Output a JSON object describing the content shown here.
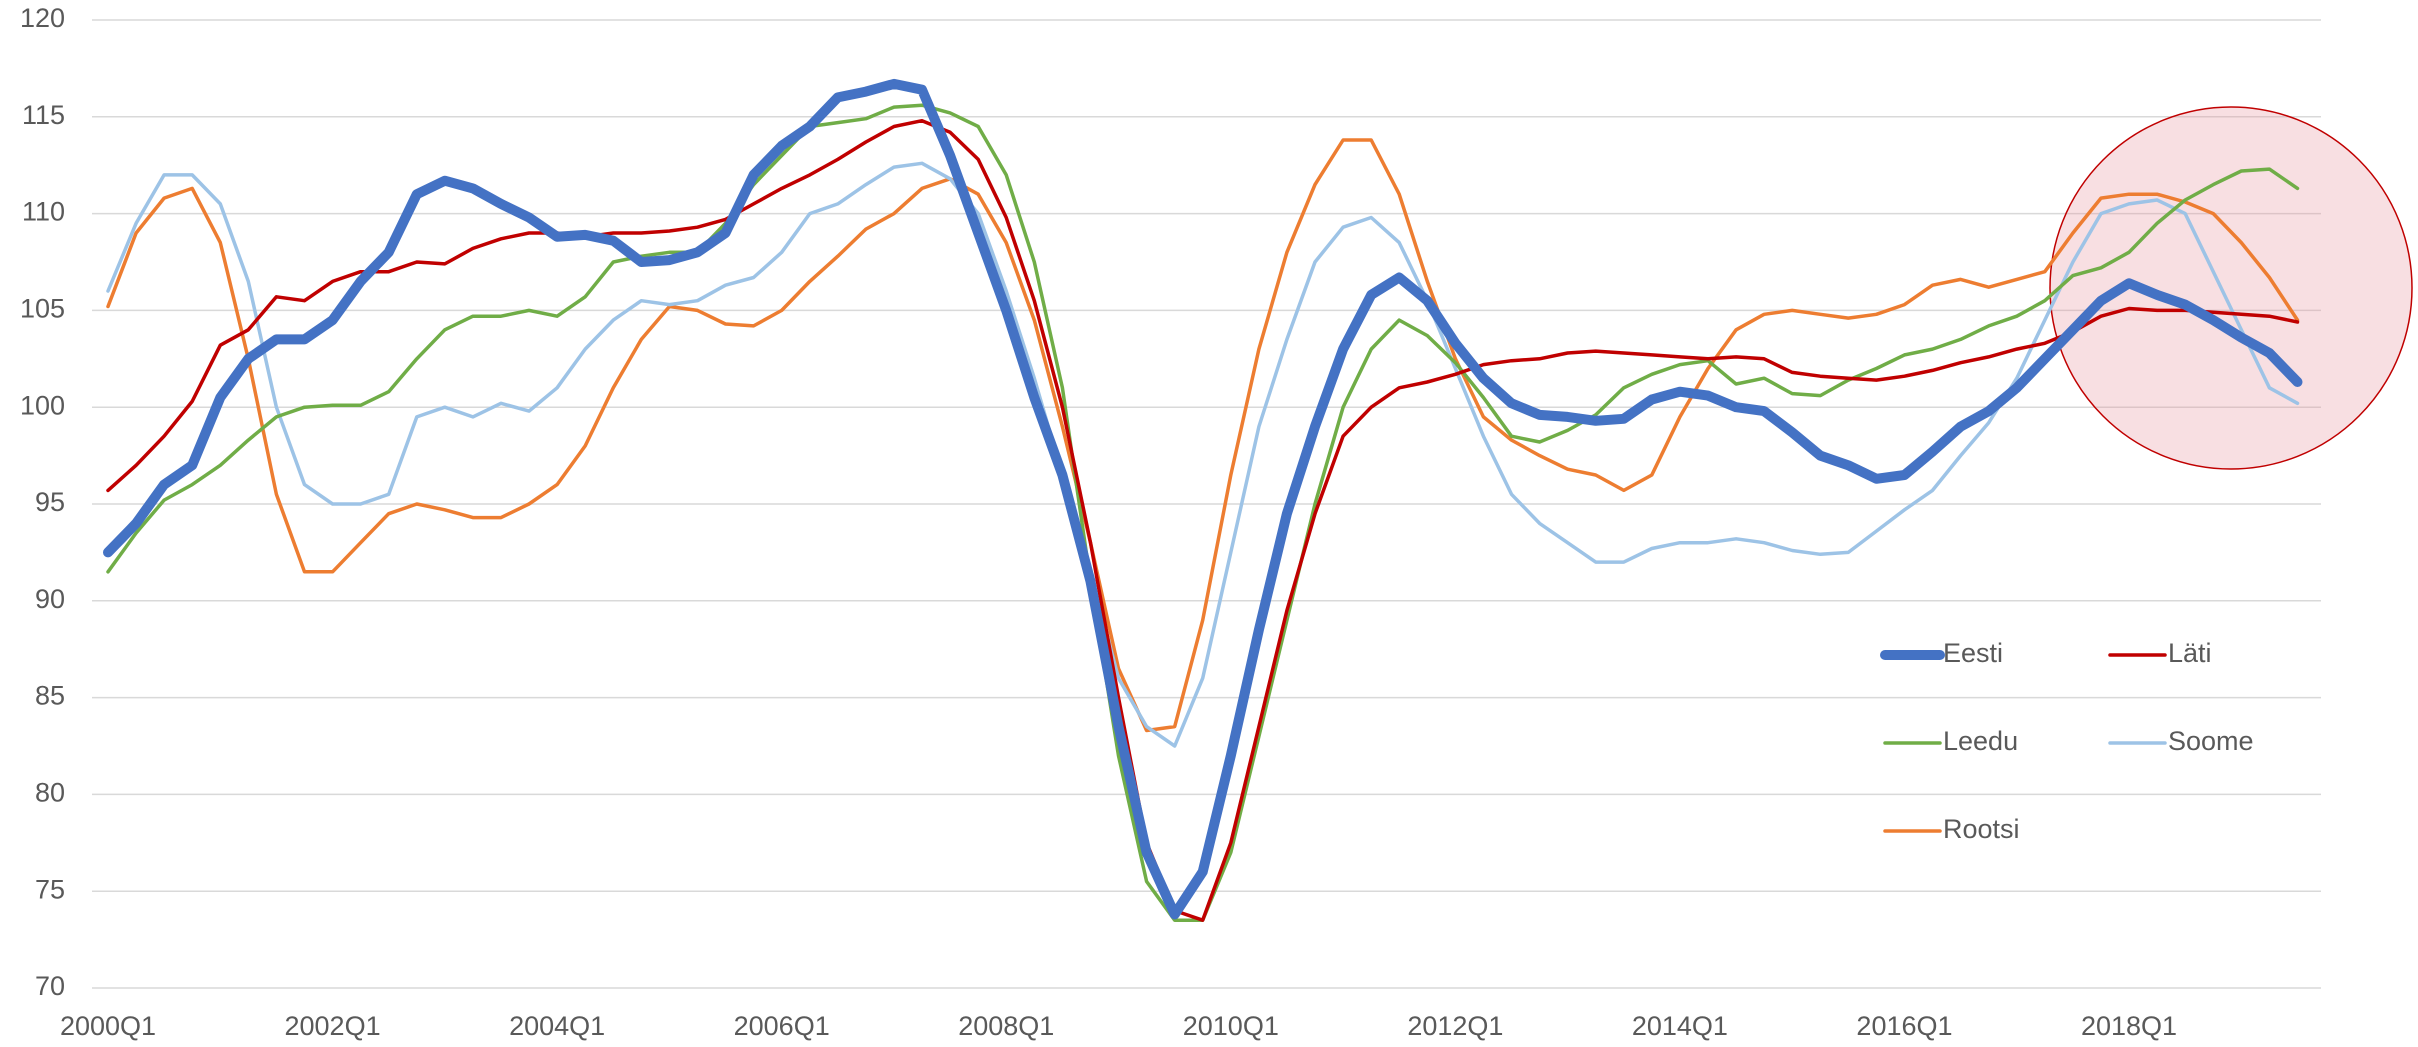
{
  "chart_data": {
    "type": "line",
    "categories": [
      "2000Q1",
      null,
      null,
      null,
      null,
      null,
      null,
      null,
      "2002Q1",
      null,
      null,
      null,
      null,
      null,
      null,
      null,
      "2004Q1",
      null,
      null,
      null,
      null,
      null,
      null,
      null,
      "2006Q1",
      null,
      null,
      null,
      null,
      null,
      null,
      null,
      "2008Q1",
      null,
      null,
      null,
      null,
      null,
      null,
      null,
      "2010Q1",
      null,
      null,
      null,
      null,
      null,
      null,
      null,
      "2012Q1",
      null,
      null,
      null,
      null,
      null,
      null,
      null,
      "2014Q1",
      null,
      null,
      null,
      null,
      null,
      null,
      null,
      "2016Q1",
      null,
      null,
      null,
      null,
      null,
      null,
      null,
      "2018Q1",
      null,
      null,
      null,
      null,
      null,
      null
    ],
    "series": [
      {
        "name": "Eesti",
        "color": "#4472c4",
        "width": 10,
        "values": [
          92.5,
          94,
          96,
          97,
          100.5,
          102.5,
          103.5,
          103.5,
          104.5,
          106.5,
          108,
          111,
          111.7,
          111.3,
          110.5,
          109.8,
          108.8,
          108.9,
          108.6,
          107.5,
          107.6,
          108,
          109,
          112,
          113.5,
          114.5,
          116,
          116.3,
          116.7,
          116.4,
          113,
          109,
          105,
          100.5,
          96.5,
          91,
          83.5,
          77,
          73.8,
          76,
          82,
          88.5,
          94.5,
          99,
          103,
          105.8,
          106.7,
          105.5,
          103.3,
          101.5,
          100.2,
          99.6,
          99.5,
          99.3,
          99.4,
          100.4,
          100.8,
          100.6,
          100,
          99.8,
          98.7,
          97.5,
          97,
          96.3,
          96.5,
          97.7,
          99,
          99.8,
          101,
          102.5,
          104,
          105.5,
          106.4,
          105.8,
          105.3,
          104.5,
          103.6,
          102.8,
          101.3
        ]
      },
      {
        "name": "Läti",
        "color": "#c00000",
        "width": 3.5,
        "values": [
          95.7,
          97,
          98.5,
          100.3,
          103.2,
          104,
          105.7,
          105.5,
          106.5,
          107,
          107,
          107.5,
          107.4,
          108.2,
          108.7,
          109,
          109,
          108.8,
          109,
          109,
          109.1,
          109.3,
          109.7,
          110.5,
          111.3,
          112,
          112.8,
          113.7,
          114.5,
          114.8,
          114.2,
          112.8,
          109.8,
          105.5,
          100,
          93,
          85,
          77.5,
          74,
          73.5,
          77.5,
          83.5,
          89.5,
          94.5,
          98.5,
          100,
          101,
          101.3,
          101.7,
          102.2,
          102.4,
          102.5,
          102.8,
          102.9,
          102.8,
          102.7,
          102.6,
          102.5,
          102.6,
          102.5,
          101.8,
          101.6,
          101.5,
          101.4,
          101.6,
          101.9,
          102.3,
          102.6,
          103,
          103.3,
          103.9,
          104.7,
          105.1,
          105,
          105,
          104.9,
          104.8,
          104.7,
          104.4
        ]
      },
      {
        "name": "Leedu",
        "color": "#70ad47",
        "width": 3.5,
        "values": [
          91.5,
          93.5,
          95.2,
          96,
          97,
          98.3,
          99.5,
          100,
          100.1,
          100.1,
          100.8,
          102.5,
          104,
          104.7,
          104.7,
          105,
          104.7,
          105.7,
          107.5,
          107.8,
          108,
          108,
          109.5,
          111.5,
          113,
          114.5,
          114.7,
          114.9,
          115.5,
          115.6,
          115.2,
          114.5,
          112,
          107.5,
          101,
          91,
          82,
          75.5,
          73.5,
          73.5,
          77,
          83,
          89,
          95,
          100,
          103,
          104.5,
          103.7,
          102.3,
          100.5,
          98.5,
          98.2,
          98.8,
          99.6,
          101,
          101.7,
          102.2,
          102.4,
          101.2,
          101.5,
          100.7,
          100.6,
          101.4,
          102,
          102.7,
          103,
          103.5,
          104.2,
          104.7,
          105.5,
          106.8,
          107.2,
          108,
          109.5,
          110.7,
          111.5,
          112.2,
          112.3,
          111.3
        ]
      },
      {
        "name": "Soome",
        "color": "#9dc3e6",
        "width": 3.5,
        "values": [
          106,
          109.5,
          112,
          112,
          110.5,
          106.5,
          100,
          96,
          95,
          95,
          95.5,
          99.5,
          100,
          99.5,
          100.2,
          99.8,
          101,
          103,
          104.5,
          105.5,
          105.3,
          105.5,
          106.3,
          106.7,
          108,
          110,
          110.5,
          111.5,
          112.4,
          112.6,
          111.8,
          110,
          106,
          101.5,
          96.5,
          91.5,
          86,
          83.5,
          82.5,
          86,
          92.5,
          99,
          103.5,
          107.5,
          109.3,
          109.8,
          108.5,
          105.5,
          102,
          98.5,
          95.5,
          94,
          93,
          92,
          92,
          92.7,
          93,
          93,
          93.2,
          93,
          92.6,
          92.4,
          92.5,
          93.6,
          94.7,
          95.7,
          97.5,
          99.2,
          101.5,
          104.5,
          107.5,
          110,
          110.5,
          110.7,
          110,
          107,
          104,
          101,
          100.2
        ]
      },
      {
        "name": "Rootsi",
        "color": "#ed7d31",
        "width": 3.5,
        "values": [
          105.2,
          109,
          110.8,
          111.3,
          108.5,
          102.5,
          95.5,
          91.5,
          91.5,
          93,
          94.5,
          95,
          94.7,
          94.3,
          94.3,
          95,
          96,
          98,
          101,
          103.5,
          105.2,
          105,
          104.3,
          104.2,
          105,
          106.5,
          107.8,
          109.2,
          110,
          111.3,
          111.8,
          111,
          108.5,
          104.5,
          99,
          93,
          86.5,
          83.3,
          83.5,
          89,
          96.5,
          103,
          108,
          111.5,
          113.8,
          113.8,
          111,
          106.5,
          102.5,
          99.5,
          98.3,
          97.5,
          96.8,
          96.5,
          95.7,
          96.5,
          99.5,
          102,
          104,
          104.8,
          105,
          104.8,
          104.6,
          104.8,
          105.3,
          106.3,
          106.6,
          106.2,
          106.6,
          107,
          109,
          110.8,
          111,
          111,
          110.6,
          110,
          108.5,
          106.7,
          104.5
        ]
      }
    ],
    "ylim": [
      70,
      120
    ],
    "yticks": [
      70,
      75,
      80,
      85,
      90,
      95,
      100,
      105,
      110,
      115,
      120
    ],
    "grid": true,
    "legend": "right"
  }
}
